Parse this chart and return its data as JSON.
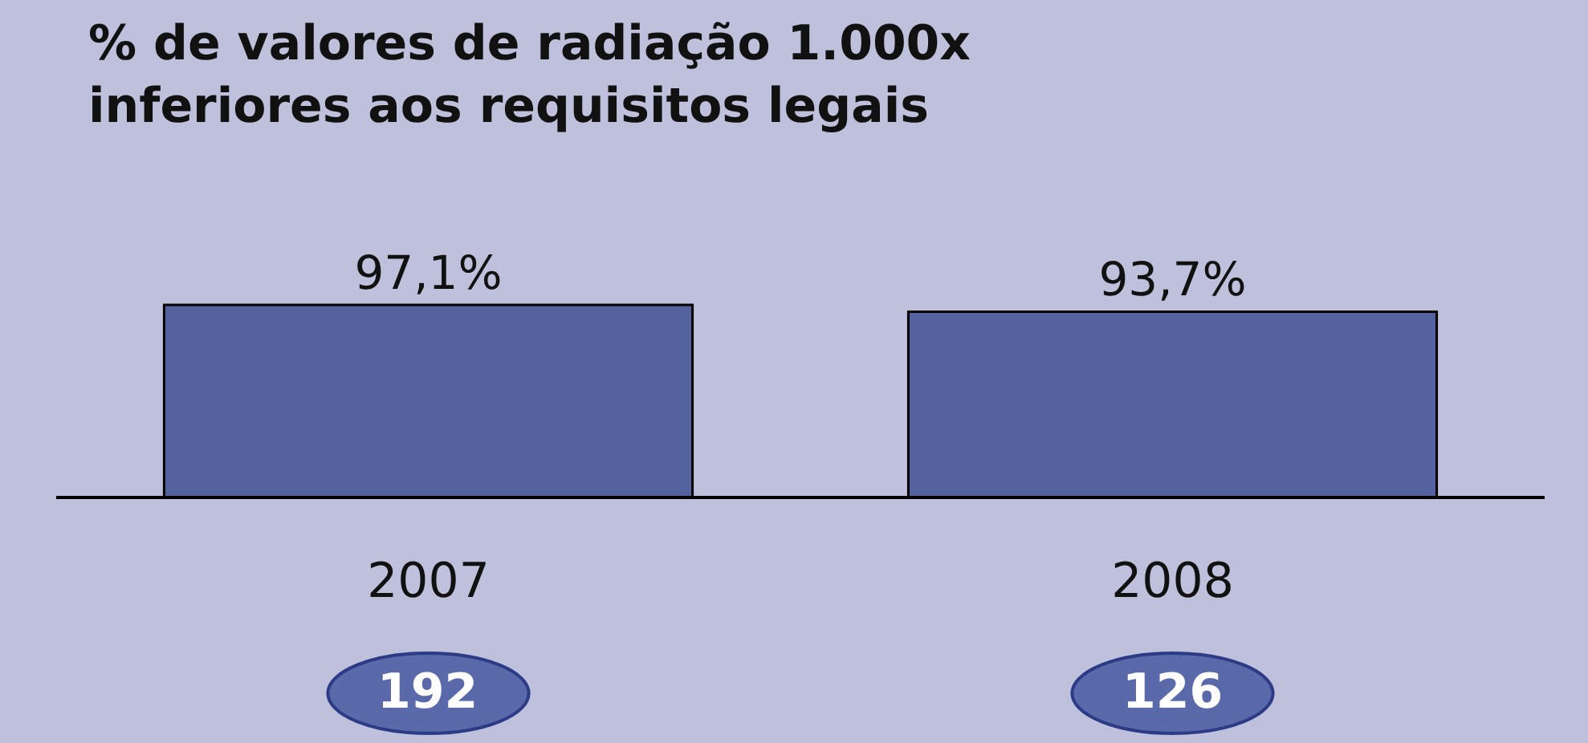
{
  "chart_data": {
    "type": "bar",
    "title": "% de valores de radiação 1.000x\ninferiores aos requisitos legais",
    "categories": [
      "2007",
      "2008"
    ],
    "values": [
      97.1,
      93.7
    ],
    "value_labels": [
      "97,1%",
      "93,7%"
    ],
    "color": "#5463a0",
    "annotations": [
      "192",
      "126"
    ],
    "grid": false,
    "legend": false
  }
}
